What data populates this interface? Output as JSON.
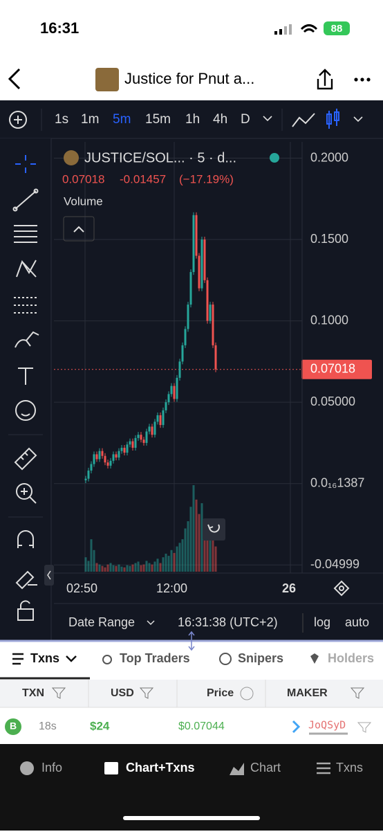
{
  "status": {
    "time": "16:31",
    "battery": "88"
  },
  "header": {
    "title": "Justice for Pnut a..."
  },
  "toolbar": {
    "intervals": [
      "1s",
      "1m",
      "5m",
      "15m",
      "1h",
      "4h",
      "D"
    ],
    "active": 2
  },
  "chart": {
    "symbol": "JUSTICE/SOL... · 5 · d...",
    "price": "0.07018",
    "change": "-0.01457",
    "change_pct": "(−17.19%)",
    "volume_label": "Volume",
    "ylim": [
      -0.055,
      0.21
    ],
    "yticks": [
      {
        "value": 0.2,
        "label": "0.2000"
      },
      {
        "value": 0.15,
        "label": "0.1500"
      },
      {
        "value": 0.1,
        "label": "0.1000"
      },
      {
        "value": 0.05,
        "label": "0.05000"
      },
      {
        "value": 1.387e-17,
        "label": "0.0₁₆1387"
      },
      -0.04999
    ],
    "last_price": 0.07018,
    "xlabels": [
      "02:50",
      "12:00",
      "26"
    ],
    "open": 0.002,
    "closes": [
      0.003,
      0.008,
      0.012,
      0.018,
      0.015,
      0.02,
      0.017,
      0.013,
      0.011,
      0.014,
      0.018,
      0.016,
      0.02,
      0.022,
      0.019,
      0.024,
      0.026,
      0.022,
      0.028,
      0.03,
      0.027,
      0.025,
      0.032,
      0.035,
      0.03,
      0.038,
      0.042,
      0.036,
      0.045,
      0.05,
      0.055,
      0.06,
      0.052,
      0.065,
      0.075,
      0.085,
      0.095,
      0.11,
      0.13,
      0.165,
      0.14,
      0.12,
      0.15,
      0.125,
      0.1,
      0.11,
      0.085,
      0.07018
    ],
    "volumes": [
      20,
      15,
      45,
      30,
      12,
      10,
      8,
      6,
      10,
      12,
      9,
      8,
      10,
      7,
      6,
      9,
      8,
      10,
      12,
      14,
      9,
      10,
      15,
      12,
      10,
      14,
      18,
      12,
      20,
      25,
      22,
      30,
      26,
      35,
      40,
      45,
      60,
      70,
      90,
      120,
      100,
      80,
      95,
      70,
      60,
      50,
      45,
      35
    ]
  },
  "footer": {
    "date_range": "Date Range",
    "time": "16:31:38 (UTC+2)",
    "log": "log",
    "auto": "auto"
  },
  "tabs": [
    "Txns",
    "Top Traders",
    "Snipers",
    "Holders"
  ],
  "table": {
    "headers": [
      "TXN",
      "USD",
      "Price",
      "MAKER"
    ],
    "rows": [
      [
        "B",
        "18s",
        "$24",
        "$0.07044",
        "JoQSyD"
      ]
    ]
  },
  "nav": [
    "Info",
    "Chart+Txns",
    "Chart",
    "Txns"
  ]
}
